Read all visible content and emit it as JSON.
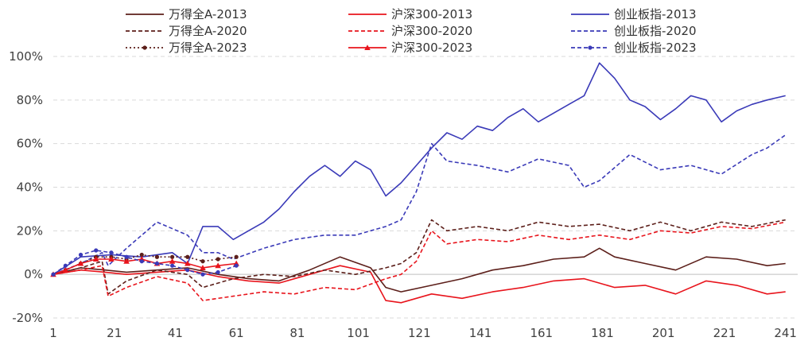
{
  "chart_data": {
    "type": "line",
    "title": "",
    "xlabel": "",
    "ylabel": "",
    "ylim": [
      -20,
      100
    ],
    "xlim": [
      1,
      245
    ],
    "y_ticks": [
      100,
      80,
      60,
      40,
      20,
      0,
      -20
    ],
    "y_tick_labels": [
      "100%",
      "80%",
      "60%",
      "40%",
      "20%",
      "0%",
      "-20%"
    ],
    "x_ticks": [
      1,
      21,
      41,
      61,
      81,
      101,
      121,
      141,
      161,
      181,
      201,
      221,
      241
    ],
    "x_tick_labels": [
      "1",
      "21",
      "41",
      "61",
      "81",
      "101",
      "121",
      "141",
      "161",
      "181",
      "201",
      "221",
      "241"
    ],
    "grid": "horizontal dashed",
    "legend_position": "top",
    "series": [
      {
        "name": "万得全A-2013",
        "color": "#5C1F1A",
        "style": "solid",
        "marker": "none",
        "x": [
          1,
          10,
          18,
          25,
          35,
          45,
          55,
          65,
          75,
          85,
          95,
          105,
          110,
          115,
          125,
          135,
          145,
          155,
          165,
          175,
          180,
          185,
          195,
          205,
          215,
          225,
          235,
          241
        ],
        "y": [
          0,
          3,
          2,
          1,
          2,
          3,
          0,
          -2,
          -3,
          2,
          8,
          3,
          -6,
          -8,
          -5,
          -2,
          2,
          4,
          7,
          8,
          12,
          8,
          5,
          2,
          8,
          7,
          4,
          5
        ]
      },
      {
        "name": "沪深300-2013",
        "color": "#E8141C",
        "style": "solid",
        "marker": "none",
        "x": [
          1,
          10,
          18,
          25,
          35,
          45,
          55,
          65,
          75,
          85,
          95,
          105,
          110,
          115,
          125,
          135,
          145,
          155,
          165,
          175,
          180,
          185,
          195,
          205,
          215,
          225,
          235,
          241
        ],
        "y": [
          0,
          2,
          1,
          0,
          1,
          2,
          -1,
          -3,
          -4,
          0,
          4,
          1,
          -12,
          -13,
          -9,
          -11,
          -8,
          -6,
          -3,
          -2,
          -4,
          -6,
          -5,
          -9,
          -3,
          -5,
          -9,
          -8
        ]
      },
      {
        "name": "创业板指-2013",
        "color": "#3A3AB8",
        "style": "solid",
        "marker": "none",
        "x": [
          1,
          10,
          20,
          30,
          40,
          45,
          50,
          55,
          60,
          65,
          70,
          75,
          80,
          85,
          90,
          95,
          100,
          105,
          110,
          115,
          120,
          125,
          130,
          135,
          140,
          145,
          150,
          155,
          160,
          165,
          170,
          175,
          180,
          185,
          190,
          195,
          200,
          205,
          210,
          215,
          220,
          225,
          230,
          235,
          241
        ],
        "y": [
          0,
          8,
          9,
          8,
          10,
          5,
          22,
          22,
          16,
          20,
          24,
          30,
          38,
          45,
          50,
          45,
          52,
          48,
          36,
          42,
          50,
          58,
          65,
          62,
          68,
          66,
          72,
          76,
          70,
          74,
          78,
          82,
          97,
          90,
          80,
          77,
          71,
          76,
          82,
          80,
          70,
          75,
          78,
          80,
          82
        ]
      },
      {
        "name": "万得全A-2020",
        "color": "#5C1F1A",
        "style": "dashed",
        "marker": "none",
        "x": [
          1,
          10,
          17,
          19,
          25,
          35,
          45,
          50,
          55,
          60,
          70,
          80,
          90,
          100,
          110,
          115,
          120,
          125,
          130,
          140,
          150,
          160,
          170,
          180,
          190,
          200,
          210,
          220,
          230,
          241
        ],
        "y": [
          0,
          3,
          6,
          -9,
          -3,
          2,
          0,
          -6,
          -4,
          -2,
          0,
          -1,
          2,
          0,
          3,
          5,
          10,
          25,
          20,
          22,
          20,
          24,
          22,
          23,
          20,
          24,
          20,
          24,
          22,
          25
        ]
      },
      {
        "name": "沪深300-2020",
        "color": "#E8141C",
        "style": "dashed",
        "marker": "none",
        "x": [
          1,
          10,
          17,
          19,
          25,
          35,
          45,
          50,
          55,
          60,
          70,
          80,
          90,
          100,
          110,
          115,
          120,
          125,
          130,
          140,
          150,
          160,
          170,
          180,
          190,
          200,
          210,
          220,
          230,
          241
        ],
        "y": [
          0,
          2,
          4,
          -10,
          -6,
          -1,
          -4,
          -12,
          -11,
          -10,
          -8,
          -9,
          -6,
          -7,
          -2,
          0,
          6,
          20,
          14,
          16,
          15,
          18,
          16,
          18,
          16,
          20,
          19,
          22,
          21,
          24
        ]
      },
      {
        "name": "创业板指-2020",
        "color": "#3A3AB8",
        "style": "dashed",
        "marker": "none",
        "x": [
          1,
          10,
          17,
          19,
          25,
          35,
          45,
          50,
          55,
          60,
          70,
          80,
          90,
          100,
          110,
          115,
          120,
          125,
          130,
          140,
          150,
          160,
          170,
          175,
          180,
          190,
          200,
          210,
          220,
          230,
          235,
          241
        ],
        "y": [
          0,
          5,
          10,
          4,
          12,
          24,
          18,
          10,
          10,
          7,
          12,
          16,
          18,
          18,
          22,
          25,
          38,
          60,
          52,
          50,
          47,
          53,
          50,
          40,
          43,
          55,
          48,
          50,
          46,
          55,
          58,
          64
        ]
      },
      {
        "name": "万得全A-2023",
        "color": "#5C1F1A",
        "style": "dotted",
        "marker": "dot",
        "x": [
          1,
          5,
          10,
          15,
          20,
          25,
          30,
          35,
          40,
          45,
          50,
          55,
          61
        ],
        "y": [
          0,
          2,
          5,
          8,
          8,
          7,
          9,
          8,
          8,
          8,
          6,
          7,
          8
        ]
      },
      {
        "name": "沪深300-2023",
        "color": "#E8141C",
        "style": "solid",
        "marker": "triangle",
        "x": [
          1,
          5,
          10,
          15,
          20,
          25,
          30,
          35,
          40,
          45,
          50,
          55,
          61
        ],
        "y": [
          0,
          2,
          5,
          7,
          7,
          6,
          7,
          5,
          6,
          5,
          3,
          4,
          5
        ]
      },
      {
        "name": "创业板指-2023",
        "color": "#3A3AB8",
        "style": "dashed",
        "marker": "dot",
        "x": [
          1,
          5,
          10,
          15,
          20,
          25,
          30,
          35,
          40,
          45,
          50,
          55,
          61
        ],
        "y": [
          0,
          4,
          9,
          11,
          10,
          8,
          6,
          5,
          4,
          2,
          0,
          1,
          4
        ]
      }
    ]
  }
}
